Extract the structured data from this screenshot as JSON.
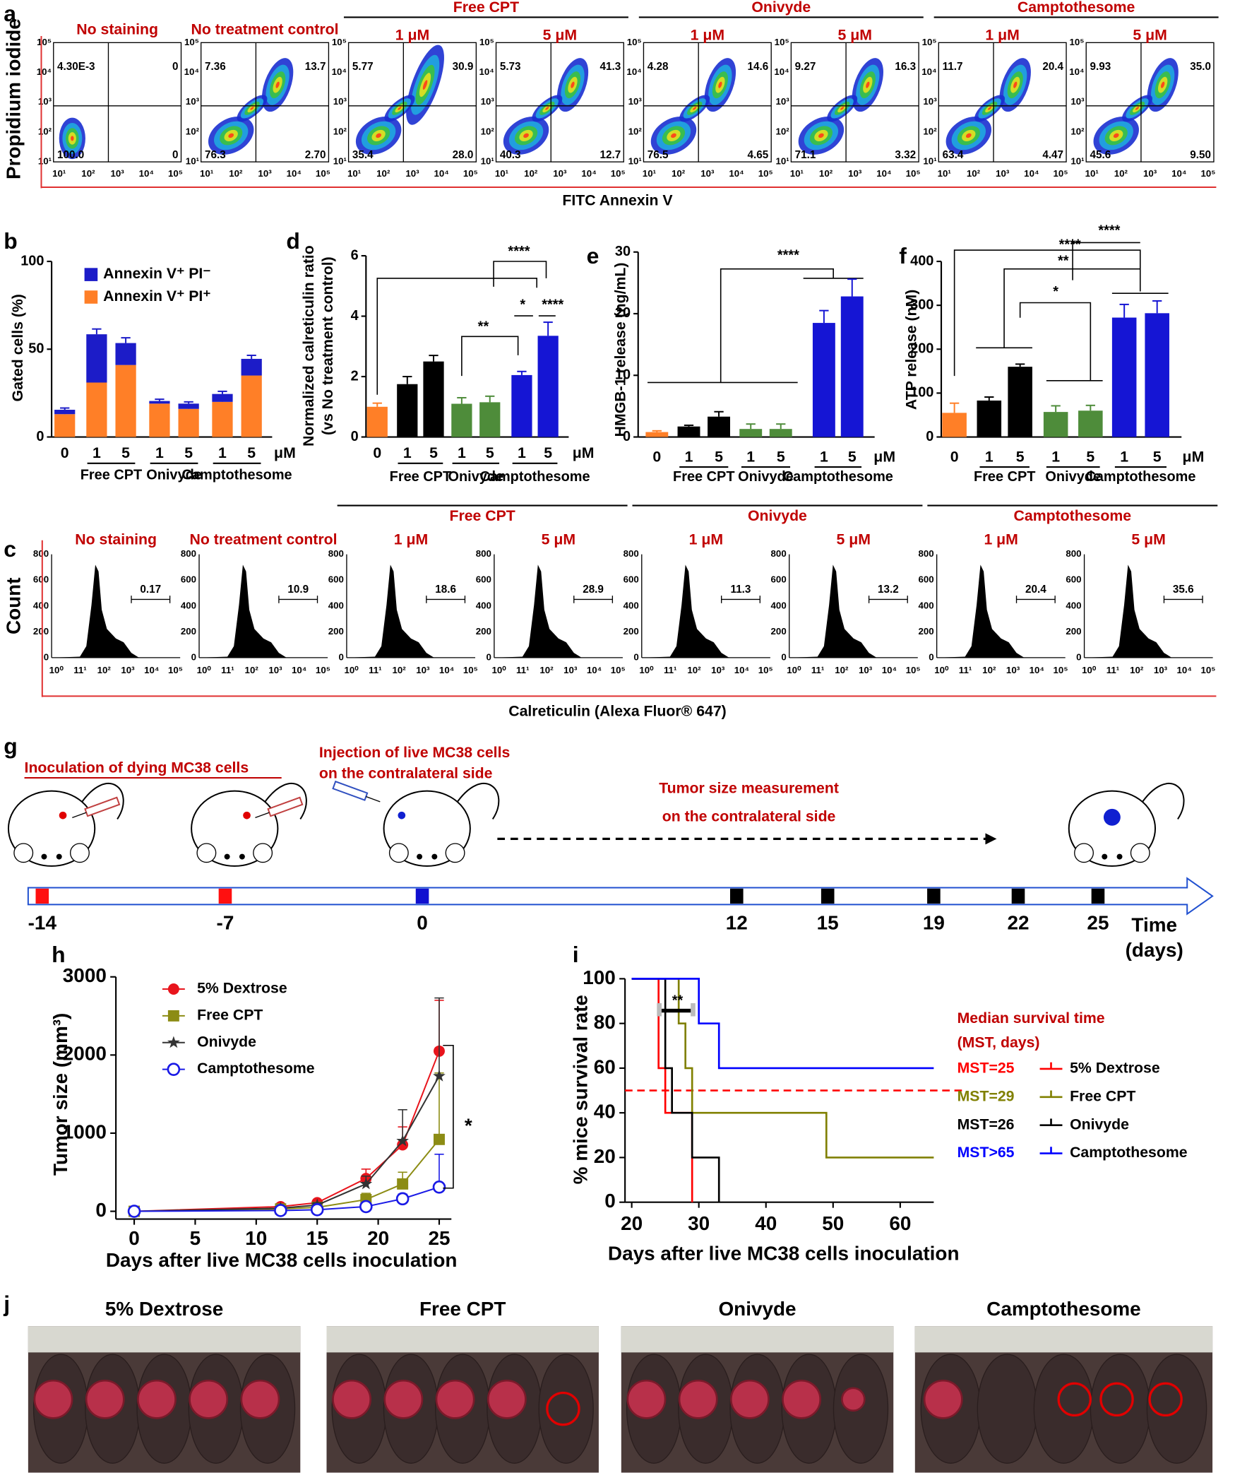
{
  "panel_a": {
    "panel": "a",
    "y_label": "Propidium iodide",
    "x_label": "FITC Annexin V",
    "ticks": [
      "10¹",
      "10²",
      "10³",
      "10⁴",
      "10⁵"
    ],
    "groups": [
      "Free CPT",
      "Onivyde",
      "Camptothesome"
    ],
    "plots": [
      {
        "title": "No staining",
        "quadrants": [
          "4.30E-3",
          "0",
          "100.0",
          "0"
        ]
      },
      {
        "title": "No treatment control",
        "quadrants": [
          "7.36",
          "13.7",
          "76.3",
          "2.70"
        ]
      },
      {
        "title": "1 μM",
        "quadrants": [
          "5.77",
          "30.9",
          "35.4",
          "28.0"
        ]
      },
      {
        "title": "5 μM",
        "quadrants": [
          "5.73",
          "41.3",
          "40.3",
          "12.7"
        ]
      },
      {
        "title": "1 μM",
        "quadrants": [
          "4.28",
          "14.6",
          "76.5",
          "4.65"
        ]
      },
      {
        "title": "5 μM",
        "quadrants": [
          "9.27",
          "16.3",
          "71.1",
          "3.32"
        ]
      },
      {
        "title": "1 μM",
        "quadrants": [
          "11.7",
          "20.4",
          "63.4",
          "4.47"
        ]
      },
      {
        "title": "5 μM",
        "quadrants": [
          "9.93",
          "35.0",
          "45.6",
          "9.50"
        ]
      }
    ]
  },
  "panel_c": {
    "panel": "c",
    "y_label": "Count",
    "x_label": "Calreticulin (Alexa Fluor® 647)",
    "xticks": [
      "10⁰",
      "11¹",
      "10²",
      "10³",
      "10⁴",
      "10⁵"
    ],
    "yticks": [
      0,
      200,
      400,
      600,
      800
    ],
    "groups": [
      "Free CPT",
      "Onivyde",
      "Camptothesome"
    ],
    "plots": [
      {
        "title": "No staining",
        "gate": "0.17"
      },
      {
        "title": "No treatment control",
        "gate": "10.9"
      },
      {
        "title": "1 μM",
        "gate": "18.6"
      },
      {
        "title": "5 μM",
        "gate": "28.9"
      },
      {
        "title": "1 μM",
        "gate": "11.3"
      },
      {
        "title": "5 μM",
        "gate": "13.2"
      },
      {
        "title": "1 μM",
        "gate": "20.4"
      },
      {
        "title": "5 μM",
        "gate": "35.6"
      }
    ]
  },
  "panel_g": {
    "panel": "g",
    "inoculation": "Inoculation of dying MC38 cells",
    "injection": [
      "Injection of live MC38 cells",
      "on the contralateral side"
    ],
    "measurement": [
      "Tumor size measurement",
      "on the contralateral side"
    ],
    "timeline": [
      "-14",
      "-7",
      "0",
      "12",
      "15",
      "19",
      "22",
      "25"
    ],
    "time_label": [
      "Time",
      "(days)"
    ]
  },
  "panel_j": {
    "panel": "j",
    "titles": [
      "5% Dextrose",
      "Free CPT",
      "Onivyde",
      "Camptothesome"
    ]
  },
  "chart_data": [
    {
      "panel": "b",
      "type": "bar",
      "stacked": true,
      "y_label": [
        "Gated cells (%)"
      ],
      "categories": [
        "0",
        "1",
        "5",
        "1",
        "5",
        "1",
        "5"
      ],
      "groups": [
        "Free CPT",
        "Onivyde",
        "Camptothesome"
      ],
      "unit": "μM",
      "ylim": [
        0,
        100
      ],
      "yticks": [
        0,
        50,
        100
      ],
      "series": [
        {
          "name": "Annexin V⁺ PI⁺",
          "color": "#ff7f27",
          "values": [
            13,
            31,
            41,
            19,
            16,
            20,
            35
          ],
          "errors": [
            0.5,
            3,
            2,
            0.5,
            0.5,
            1,
            2
          ]
        },
        {
          "name": "Annexin V⁺ PI⁻",
          "color": "#1c1cc8",
          "values": [
            2.5,
            27.5,
            12.5,
            1.5,
            3,
            4.5,
            9.5
          ],
          "errors": [
            1,
            3,
            3,
            1,
            1,
            1.5,
            2
          ]
        }
      ]
    },
    {
      "panel": "d",
      "type": "bar",
      "y_label": [
        "Normalized calreticulin ratio",
        "(vs No treatment control)"
      ],
      "categories": [
        "0",
        "1",
        "5",
        "1",
        "5",
        "1",
        "5"
      ],
      "groups": [
        "Free CPT",
        "Onivyde",
        "Camptothesome"
      ],
      "unit": "μM",
      "ylim": [
        0,
        6
      ],
      "yticks": [
        0,
        2,
        4,
        6
      ],
      "values": [
        1.0,
        1.75,
        2.5,
        1.1,
        1.15,
        2.05,
        3.35
      ],
      "errors": [
        0.12,
        0.25,
        0.2,
        0.2,
        0.2,
        0.12,
        0.45
      ],
      "colors": [
        "#ff7f27",
        "#000000",
        "#000000",
        "#4e8c3a",
        "#4e8c3a",
        "#1515d4",
        "#1515d4"
      ],
      "annotations": [
        "****",
        "**",
        "*",
        "****"
      ]
    },
    {
      "panel": "e",
      "type": "bar",
      "y_label": [
        "HMGB-1 release (ng/mL)"
      ],
      "categories": [
        "0",
        "1",
        "5",
        "1",
        "5",
        "1",
        "5"
      ],
      "groups": [
        "Free CPT",
        "Onivyde",
        "Camptothesome"
      ],
      "unit": "μM",
      "ylim": [
        0,
        30
      ],
      "yticks": [
        0,
        10,
        20,
        30
      ],
      "values": [
        0.8,
        1.7,
        3.3,
        1.3,
        1.3,
        18.5,
        22.8
      ],
      "errors": [
        0.2,
        0.2,
        0.8,
        0.8,
        0.8,
        2,
        2.8
      ],
      "colors": [
        "#ff7f27",
        "#000000",
        "#000000",
        "#4e8c3a",
        "#4e8c3a",
        "#1515d4",
        "#1515d4"
      ],
      "annotations": [
        "****"
      ]
    },
    {
      "panel": "f",
      "type": "bar",
      "y_label": [
        "ATP release (nM)"
      ],
      "categories": [
        "0",
        "1",
        "5",
        "1",
        "5",
        "1",
        "5"
      ],
      "groups": [
        "Free CPT",
        "Onivyde",
        "Camptothesome"
      ],
      "unit": "μM",
      "ylim": [
        0,
        400
      ],
      "yticks": [
        0,
        100,
        200,
        300,
        400
      ],
      "values": [
        55,
        83,
        160,
        57,
        60,
        272,
        282
      ],
      "errors": [
        22,
        8,
        6,
        14,
        12,
        30,
        28
      ],
      "colors": [
        "#ff7f27",
        "#000000",
        "#000000",
        "#4e8c3a",
        "#4e8c3a",
        "#1515d4",
        "#1515d4"
      ],
      "annotations": [
        "****",
        "**",
        "*",
        "****"
      ]
    },
    {
      "panel": "h",
      "type": "line",
      "y_label": "Tumor size (mm³)",
      "x_label": "Days after live MC38 cells inoculation",
      "x": [
        0,
        12,
        15,
        19,
        22,
        25
      ],
      "xlim": [
        -1.5,
        26
      ],
      "xticks": [
        0,
        5,
        10,
        15,
        20,
        25
      ],
      "ylim": [
        -100,
        3000
      ],
      "yticks": [
        0,
        1000,
        2000,
        3000
      ],
      "series": [
        {
          "name": "5% Dextrose",
          "color": "#e8141c",
          "marker": "circle",
          "values": [
            0,
            60,
            110,
            420,
            850,
            2050
          ],
          "errors": [
            0,
            20,
            30,
            120,
            230,
            650
          ]
        },
        {
          "name": "Free CPT",
          "color": "#8c8c14",
          "marker": "square",
          "values": [
            0,
            30,
            50,
            150,
            350,
            920
          ],
          "errors": [
            0,
            10,
            20,
            80,
            150,
            850
          ]
        },
        {
          "name": "Onivyde",
          "color": "#333333",
          "marker": "star",
          "values": [
            0,
            40,
            80,
            350,
            900,
            1730
          ],
          "errors": [
            0,
            15,
            30,
            100,
            400,
            1000
          ]
        },
        {
          "name": "Camptothesome",
          "color": "#1a1ae6",
          "marker": "open-circle",
          "values": [
            0,
            10,
            20,
            60,
            160,
            310
          ],
          "errors": [
            0,
            5,
            10,
            30,
            60,
            420
          ]
        }
      ],
      "annotations": [
        "*"
      ]
    },
    {
      "panel": "i",
      "type": "step",
      "y_label": "% mice survival rate",
      "x_label": "Days after live MC38 cells inoculation",
      "xlim": [
        19,
        65
      ],
      "xticks": [
        20,
        30,
        40,
        50,
        60
      ],
      "ylim": [
        0,
        100
      ],
      "yticks": [
        0,
        20,
        40,
        60,
        80,
        100
      ],
      "median_line": 50,
      "legend_title": [
        "Median survival time",
        "(MST, days)"
      ],
      "series": [
        {
          "name": "5% Dextrose",
          "color": "#ff0000",
          "mst": "MST=25",
          "x": [
            20,
            24,
            25,
            29
          ],
          "values": [
            100,
            60,
            40,
            0
          ]
        },
        {
          "name": "Free CPT",
          "color": "#808000",
          "mst": "MST=29",
          "x": [
            20,
            27,
            28,
            29,
            49,
            65
          ],
          "values": [
            100,
            80,
            60,
            40,
            20,
            20
          ]
        },
        {
          "name": "Onivyde",
          "color": "#000000",
          "mst": "MST=26",
          "x": [
            20,
            25,
            26,
            29,
            33
          ],
          "values": [
            100,
            60,
            40,
            20,
            0
          ]
        },
        {
          "name": "Camptothesome",
          "color": "#0000ff",
          "mst": "MST>65",
          "x": [
            20,
            30,
            33,
            65
          ],
          "values": [
            100,
            80,
            60,
            60
          ]
        }
      ],
      "annotations": [
        "**"
      ]
    }
  ]
}
